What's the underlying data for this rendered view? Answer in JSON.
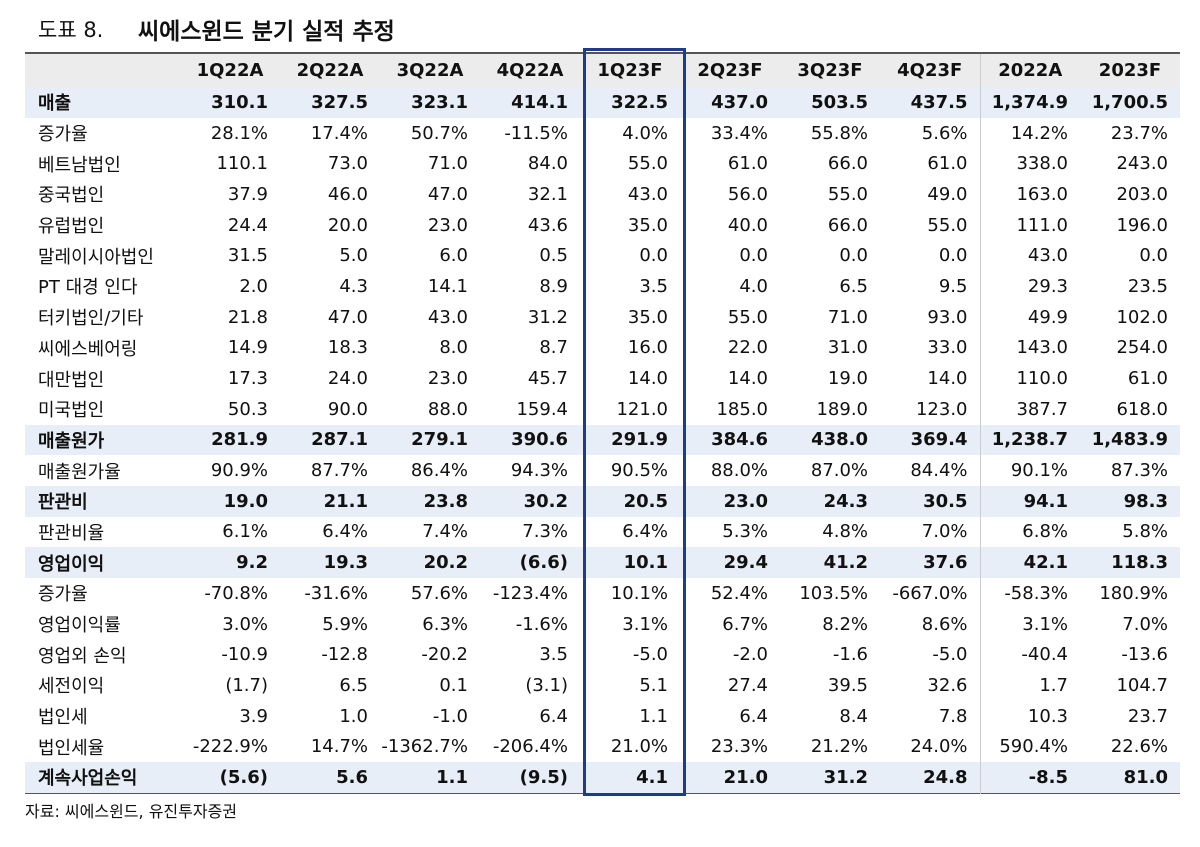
{
  "header": {
    "label": "도표 8.",
    "title": "씨에스윈드 분기 실적 추정"
  },
  "table": {
    "columns": [
      "1Q22A",
      "2Q22A",
      "3Q22A",
      "4Q22A",
      "1Q23F",
      "2Q23F",
      "3Q23F",
      "4Q23F",
      "2022A",
      "2023F"
    ],
    "rows": [
      {
        "bold": true,
        "cells": [
          "매출",
          "310.1",
          "327.5",
          "323.1",
          "414.1",
          "322.5",
          "437.0",
          "503.5",
          "437.5",
          "1,374.9",
          "1,700.5"
        ]
      },
      {
        "bold": false,
        "cells": [
          "증가율",
          "28.1%",
          "17.4%",
          "50.7%",
          "-11.5%",
          "4.0%",
          "33.4%",
          "55.8%",
          "5.6%",
          "14.2%",
          "23.7%"
        ]
      },
      {
        "bold": false,
        "cells": [
          "베트남법인",
          "110.1",
          "73.0",
          "71.0",
          "84.0",
          "55.0",
          "61.0",
          "66.0",
          "61.0",
          "338.0",
          "243.0"
        ]
      },
      {
        "bold": false,
        "cells": [
          "중국법인",
          "37.9",
          "46.0",
          "47.0",
          "32.1",
          "43.0",
          "56.0",
          "55.0",
          "49.0",
          "163.0",
          "203.0"
        ]
      },
      {
        "bold": false,
        "cells": [
          "유럽법인",
          "24.4",
          "20.0",
          "23.0",
          "43.6",
          "35.0",
          "40.0",
          "66.0",
          "55.0",
          "111.0",
          "196.0"
        ]
      },
      {
        "bold": false,
        "cells": [
          "말레이시아법인",
          "31.5",
          "5.0",
          "6.0",
          "0.5",
          "0.0",
          "0.0",
          "0.0",
          "0.0",
          "43.0",
          "0.0"
        ]
      },
      {
        "bold": false,
        "cells": [
          "PT 대경 인다",
          "2.0",
          "4.3",
          "14.1",
          "8.9",
          "3.5",
          "4.0",
          "6.5",
          "9.5",
          "29.3",
          "23.5"
        ]
      },
      {
        "bold": false,
        "cells": [
          "터키법인/기타",
          "21.8",
          "47.0",
          "43.0",
          "31.2",
          "35.0",
          "55.0",
          "71.0",
          "93.0",
          "49.9",
          "102.0"
        ]
      },
      {
        "bold": false,
        "cells": [
          "씨에스베어링",
          "14.9",
          "18.3",
          "8.0",
          "8.7",
          "16.0",
          "22.0",
          "31.0",
          "33.0",
          "143.0",
          "254.0"
        ]
      },
      {
        "bold": false,
        "cells": [
          "대만법인",
          "17.3",
          "24.0",
          "23.0",
          "45.7",
          "14.0",
          "14.0",
          "19.0",
          "14.0",
          "110.0",
          "61.0"
        ]
      },
      {
        "bold": false,
        "cells": [
          "미국법인",
          "50.3",
          "90.0",
          "88.0",
          "159.4",
          "121.0",
          "185.0",
          "189.0",
          "123.0",
          "387.7",
          "618.0"
        ]
      },
      {
        "bold": true,
        "cells": [
          "매출원가",
          "281.9",
          "287.1",
          "279.1",
          "390.6",
          "291.9",
          "384.6",
          "438.0",
          "369.4",
          "1,238.7",
          "1,483.9"
        ]
      },
      {
        "bold": false,
        "cells": [
          "매출원가율",
          "90.9%",
          "87.7%",
          "86.4%",
          "94.3%",
          "90.5%",
          "88.0%",
          "87.0%",
          "84.4%",
          "90.1%",
          "87.3%"
        ]
      },
      {
        "bold": true,
        "cells": [
          "판관비",
          "19.0",
          "21.1",
          "23.8",
          "30.2",
          "20.5",
          "23.0",
          "24.3",
          "30.5",
          "94.1",
          "98.3"
        ]
      },
      {
        "bold": false,
        "cells": [
          "판관비율",
          "6.1%",
          "6.4%",
          "7.4%",
          "7.3%",
          "6.4%",
          "5.3%",
          "4.8%",
          "7.0%",
          "6.8%",
          "5.8%"
        ]
      },
      {
        "bold": true,
        "cells": [
          "영업이익",
          "9.2",
          "19.3",
          "20.2",
          "(6.6)",
          "10.1",
          "29.4",
          "41.2",
          "37.6",
          "42.1",
          "118.3"
        ]
      },
      {
        "bold": false,
        "cells": [
          "증가율",
          "-70.8%",
          "-31.6%",
          "57.6%",
          "-123.4%",
          "10.1%",
          "52.4%",
          "103.5%",
          "-667.0%",
          "-58.3%",
          "180.9%"
        ]
      },
      {
        "bold": false,
        "cells": [
          "영업이익률",
          "3.0%",
          "5.9%",
          "6.3%",
          "-1.6%",
          "3.1%",
          "6.7%",
          "8.2%",
          "8.6%",
          "3.1%",
          "7.0%"
        ]
      },
      {
        "bold": false,
        "cells": [
          "영업외 손익",
          "-10.9",
          "-12.8",
          "-20.2",
          "3.5",
          "-5.0",
          "-2.0",
          "-1.6",
          "-5.0",
          "-40.4",
          "-13.6"
        ]
      },
      {
        "bold": false,
        "cells": [
          "세전이익",
          "(1.7)",
          "6.5",
          "0.1",
          "(3.1)",
          "5.1",
          "27.4",
          "39.5",
          "32.6",
          "1.7",
          "104.7"
        ]
      },
      {
        "bold": false,
        "cells": [
          "법인세",
          "3.9",
          "1.0",
          "-1.0",
          "6.4",
          "1.1",
          "6.4",
          "8.4",
          "7.8",
          "10.3",
          "23.7"
        ]
      },
      {
        "bold": false,
        "cells": [
          "법인세율",
          "-222.9%",
          "14.7%",
          "-1362.7%",
          "-206.4%",
          "21.0%",
          "23.3%",
          "21.2%",
          "24.0%",
          "590.4%",
          "22.6%"
        ]
      },
      {
        "bold": true,
        "cells": [
          "계속사업손익",
          "(5.6)",
          "5.6",
          "1.1",
          "(9.5)",
          "4.1",
          "21.0",
          "31.2",
          "24.8",
          "-8.5",
          "81.0"
        ]
      }
    ]
  },
  "source": "자료: 씨에스윈드, 유진투자증권"
}
